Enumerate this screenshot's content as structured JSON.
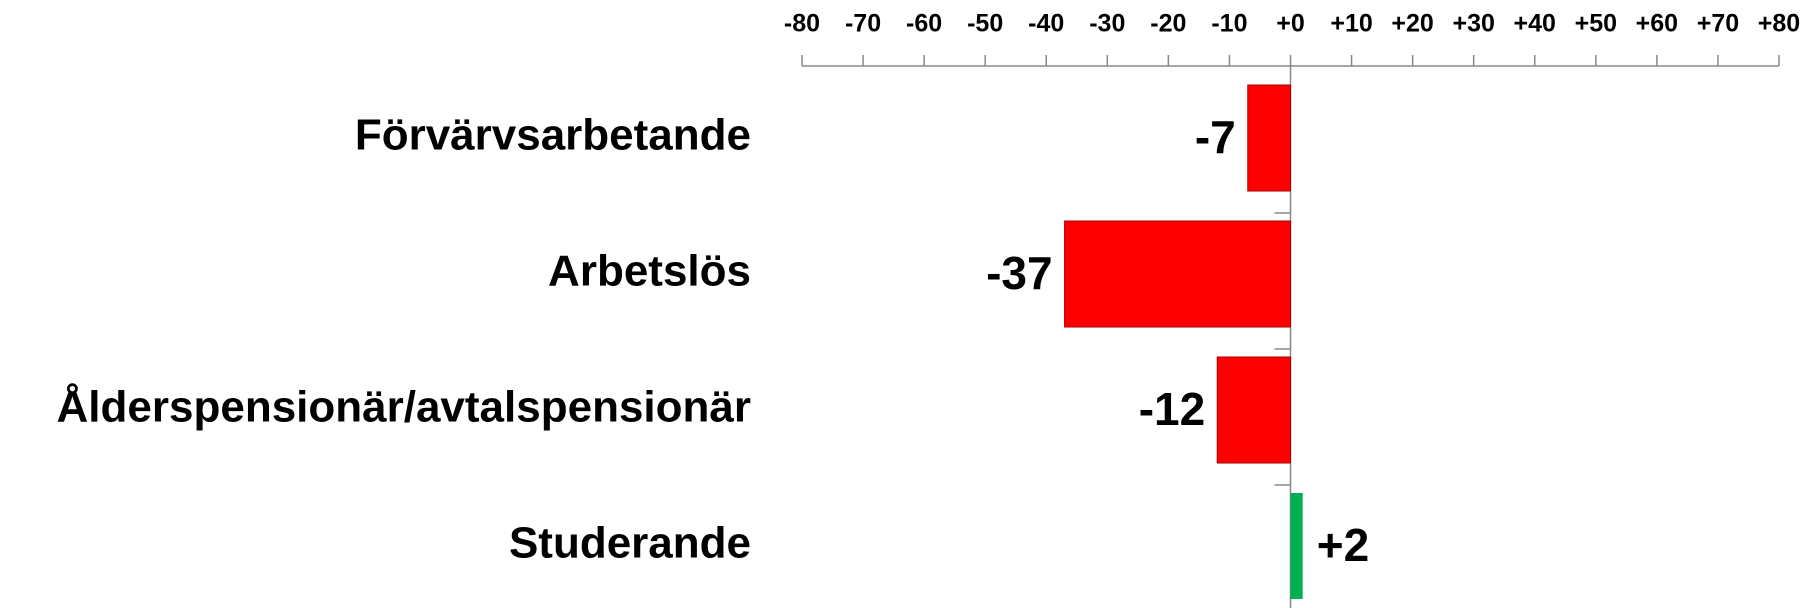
{
  "chart_data": {
    "type": "bar",
    "orientation": "horizontal",
    "categories": [
      "Förvärvsarbetande",
      "Arbetslös",
      "Ålderspensionär/avtalspensionär",
      "Studerande"
    ],
    "values": [
      -7,
      -37,
      -12,
      2
    ],
    "value_labels": [
      "-7",
      "-37",
      "-12",
      "+2"
    ],
    "colors": [
      "#ff0000",
      "#ff0000",
      "#ff0000",
      "#00b050"
    ],
    "xlim": [
      -80,
      80
    ],
    "xticks": [
      -80,
      -70,
      -60,
      -50,
      -40,
      -30,
      -20,
      -10,
      {
        "value": 0,
        "label": "+0"
      },
      {
        "value": 10,
        "label": "+10"
      },
      {
        "value": 20,
        "label": "+20"
      },
      {
        "value": 30,
        "label": "+30"
      },
      {
        "value": 40,
        "label": "+40"
      },
      {
        "value": 50,
        "label": "+50"
      },
      {
        "value": 60,
        "label": "+60"
      },
      {
        "value": 70,
        "label": "+70"
      },
      {
        "value": 80,
        "label": "+80"
      }
    ],
    "grid": false
  }
}
